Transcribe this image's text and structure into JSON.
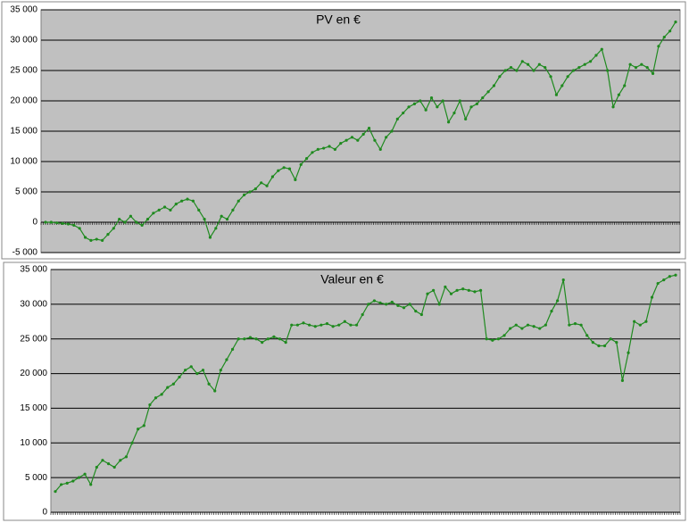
{
  "chart_data": [
    {
      "type": "line",
      "title": "PV en €",
      "color": "#1f8a1f",
      "grid": true,
      "ylim": [
        -5000,
        35000
      ],
      "yticks": [
        {
          "value": -5000,
          "label": "-5 000",
          "color": "#c00000"
        },
        0,
        {
          "value": 5000,
          "label": "5 000"
        },
        {
          "value": 10000,
          "label": "10 000"
        },
        {
          "value": 15000,
          "label": "15 000"
        },
        {
          "value": 20000,
          "label": "20 000"
        },
        {
          "value": 25000,
          "label": "25 000"
        },
        {
          "value": 30000,
          "label": "30 000"
        },
        {
          "value": 35000,
          "label": "35 000"
        }
      ],
      "values": [
        0,
        0,
        -100,
        -200,
        -300,
        -500,
        -1000,
        -2500,
        -3000,
        -2800,
        -3000,
        -2000,
        -1000,
        500,
        0,
        1000,
        0,
        -500,
        500,
        1500,
        2000,
        2500,
        2000,
        3000,
        3500,
        3800,
        3500,
        2000,
        500,
        -2500,
        -1000,
        1000,
        500,
        2000,
        3500,
        4500,
        5000,
        5500,
        6500,
        6000,
        7500,
        8500,
        9000,
        8800,
        7000,
        9500,
        10500,
        11500,
        12000,
        12200,
        12500,
        12000,
        13000,
        13500,
        14000,
        13500,
        14500,
        15500,
        13500,
        12000,
        14000,
        15000,
        17000,
        18000,
        19000,
        19500,
        20000,
        18500,
        20500,
        19000,
        20000,
        16500,
        18000,
        20000,
        17000,
        19000,
        19500,
        20500,
        21500,
        22500,
        24000,
        25000,
        25500,
        25000,
        26500,
        26000,
        25000,
        26000,
        25500,
        24000,
        21000,
        22500,
        24000,
        25000,
        25500,
        26000,
        26500,
        27500,
        28500,
        25000,
        19000,
        21000,
        22500,
        26000,
        25500,
        26000,
        25500,
        24500,
        29000,
        30500,
        31500,
        33000
      ]
    },
    {
      "type": "line",
      "title": "Valeur en €",
      "color": "#1f8a1f",
      "grid": true,
      "ylim": [
        0,
        35000
      ],
      "yticks": [
        0,
        {
          "value": 5000,
          "label": "5 000"
        },
        {
          "value": 10000,
          "label": "10 000"
        },
        {
          "value": 15000,
          "label": "15 000"
        },
        {
          "value": 20000,
          "label": "20 000"
        },
        {
          "value": 25000,
          "label": "25 000"
        },
        {
          "value": 30000,
          "label": "30 000"
        },
        {
          "value": 35000,
          "label": "35 000"
        }
      ],
      "values": [
        3000,
        4000,
        4200,
        4500,
        5000,
        5500,
        4000,
        6500,
        7500,
        7000,
        6500,
        7500,
        8000,
        10000,
        12000,
        12500,
        15500,
        16500,
        17000,
        18000,
        18500,
        19500,
        20500,
        21000,
        20000,
        20500,
        18500,
        17500,
        20500,
        22000,
        23500,
        25000,
        25000,
        25200,
        25000,
        24500,
        25000,
        25300,
        25000,
        24500,
        27000,
        27000,
        27300,
        27000,
        26800,
        27000,
        27200,
        26800,
        27000,
        27500,
        27000,
        27000,
        28500,
        30000,
        30500,
        30200,
        30000,
        30300,
        29800,
        29500,
        30000,
        29000,
        28500,
        31500,
        32000,
        30000,
        32500,
        31500,
        32000,
        32200,
        32000,
        31800,
        32000,
        25000,
        24800,
        25000,
        25500,
        26500,
        27000,
        26500,
        27000,
        26800,
        26500,
        27000,
        29000,
        30500,
        33500,
        27000,
        27200,
        27000,
        25500,
        24500,
        24000,
        24000,
        25000,
        24500,
        19000,
        23000,
        27500,
        27000,
        27500,
        31000,
        33000,
        33500,
        34000,
        34200
      ]
    }
  ]
}
